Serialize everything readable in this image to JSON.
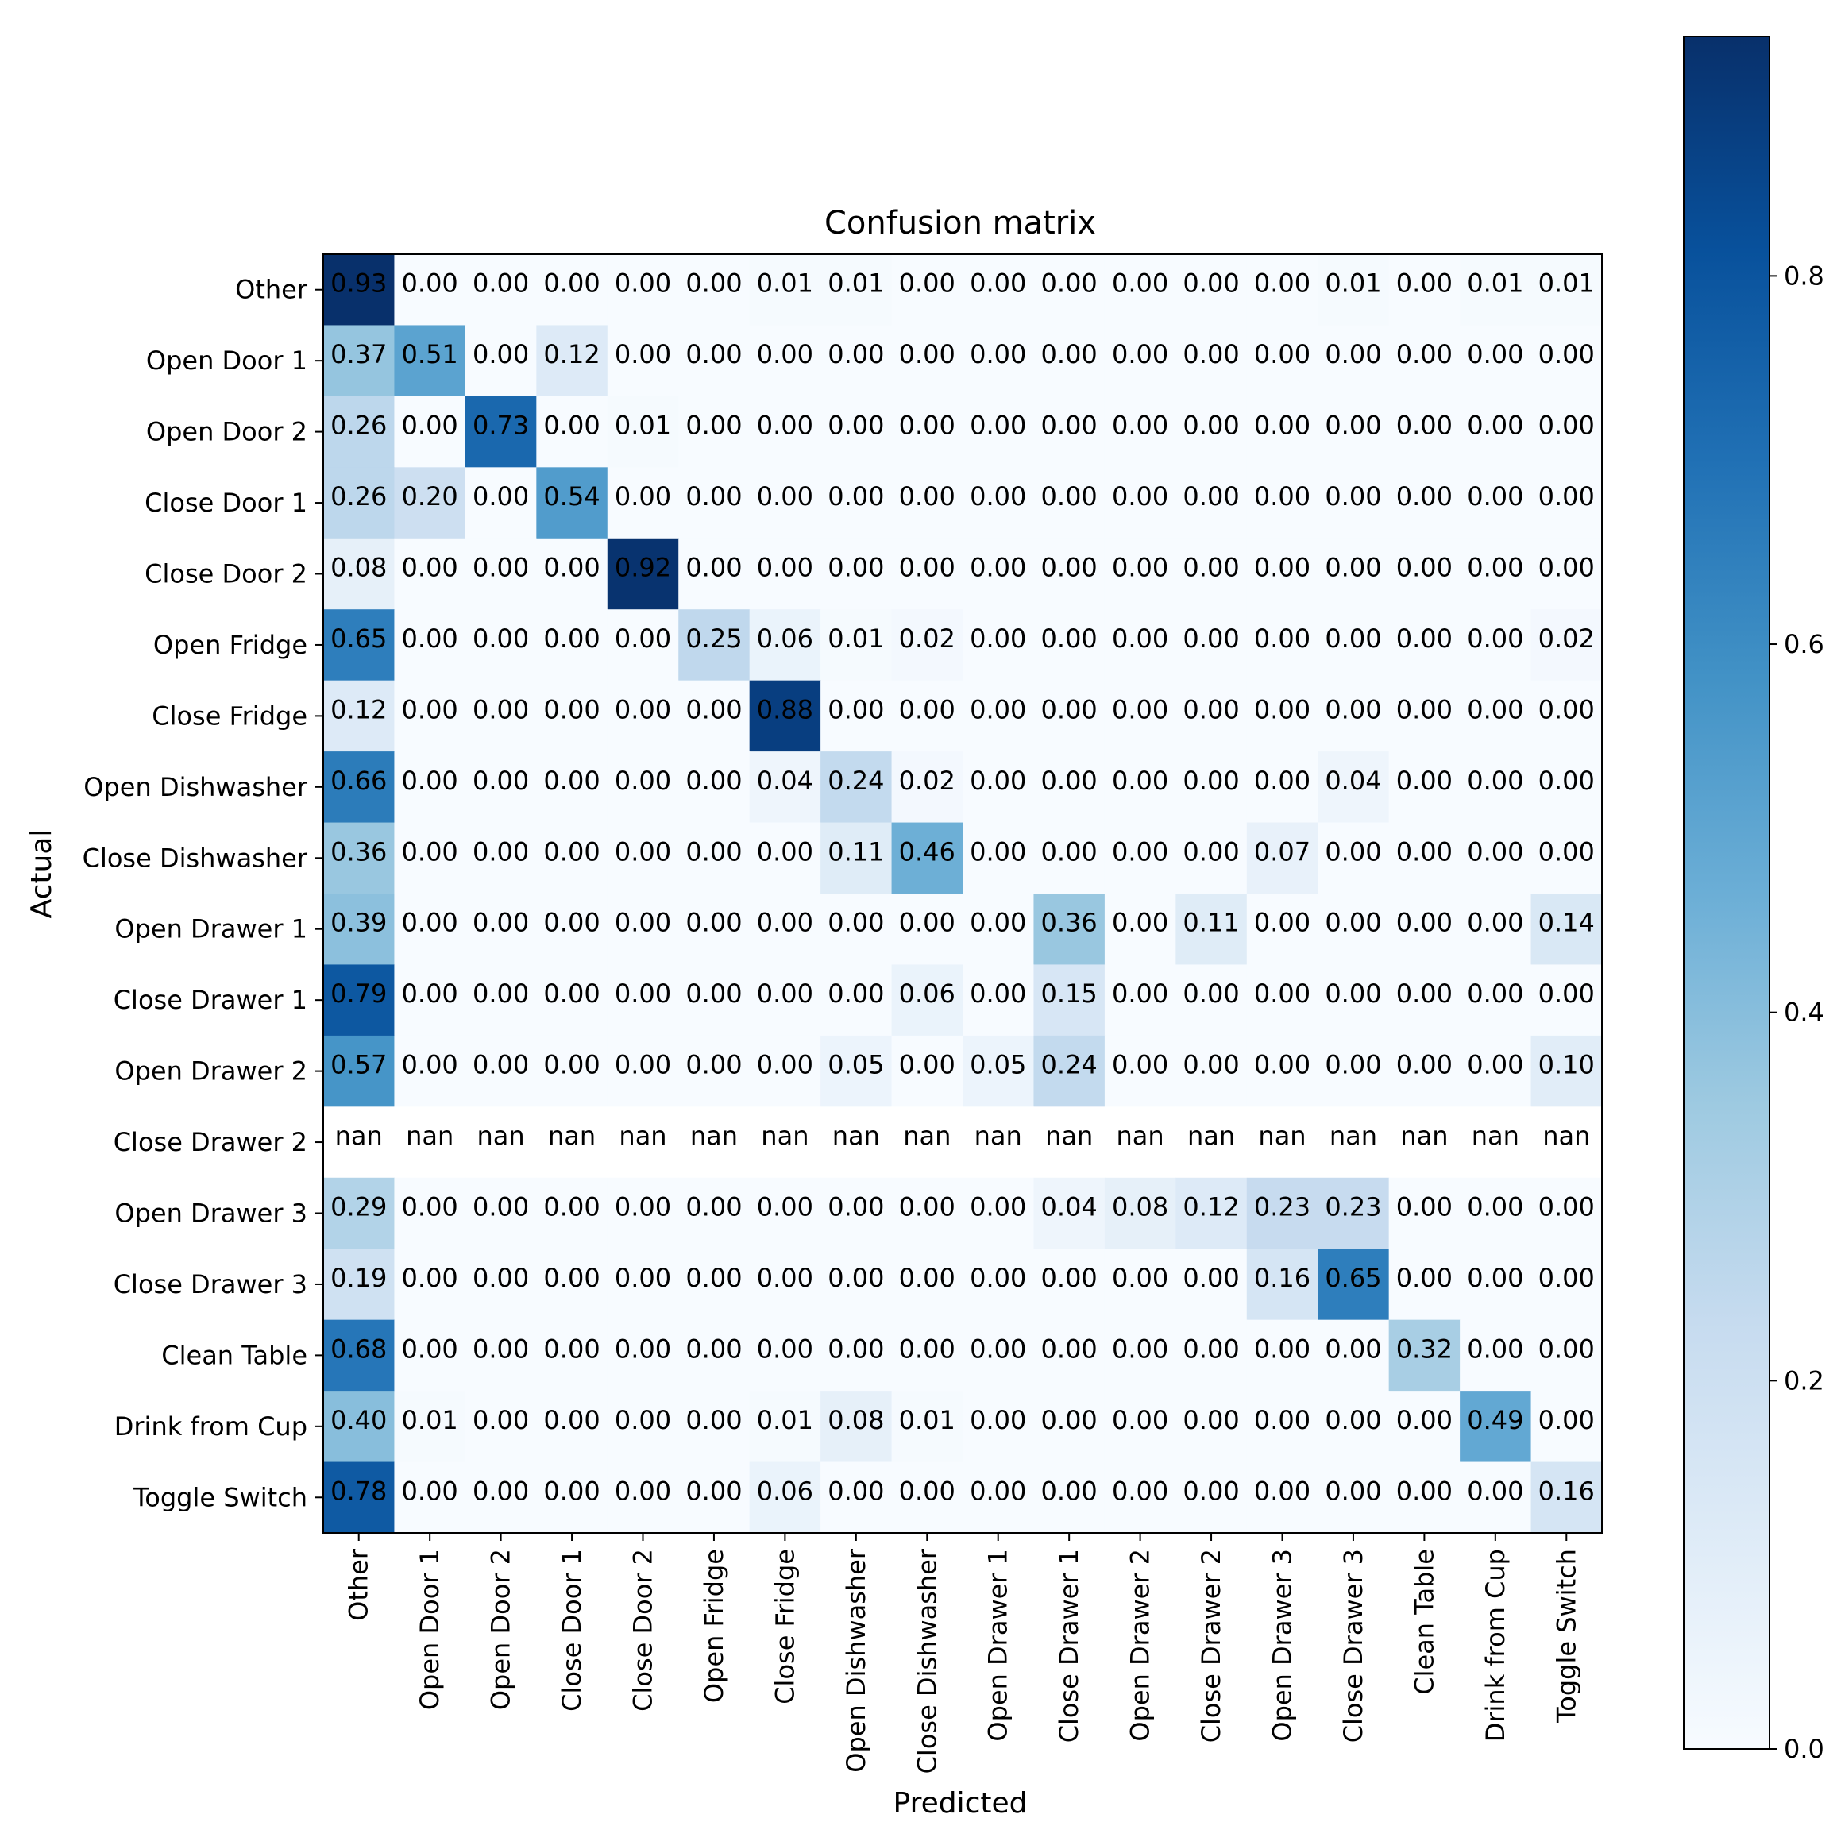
{
  "chart_data": {
    "type": "heatmap",
    "title": "Confusion matrix",
    "xlabel": "Predicted",
    "ylabel": "Actual",
    "labels": [
      "Other",
      "Open Door 1",
      "Open Door 2",
      "Close Door 1",
      "Close Door 2",
      "Open Fridge",
      "Close Fridge",
      "Open Dishwasher",
      "Close Dishwasher",
      "Open Drawer 1",
      "Close Drawer 1",
      "Open Drawer 2",
      "Close Drawer 2",
      "Open Drawer 3",
      "Close Drawer 3",
      "Clean Table",
      "Drink from Cup",
      "Toggle Switch"
    ],
    "matrix": [
      [
        "0.93",
        "0.00",
        "0.00",
        "0.00",
        "0.00",
        "0.00",
        "0.01",
        "0.01",
        "0.00",
        "0.00",
        "0.00",
        "0.00",
        "0.00",
        "0.00",
        "0.01",
        "0.00",
        "0.01",
        "0.01"
      ],
      [
        "0.37",
        "0.51",
        "0.00",
        "0.12",
        "0.00",
        "0.00",
        "0.00",
        "0.00",
        "0.00",
        "0.00",
        "0.00",
        "0.00",
        "0.00",
        "0.00",
        "0.00",
        "0.00",
        "0.00",
        "0.00"
      ],
      [
        "0.26",
        "0.00",
        "0.73",
        "0.00",
        "0.01",
        "0.00",
        "0.00",
        "0.00",
        "0.00",
        "0.00",
        "0.00",
        "0.00",
        "0.00",
        "0.00",
        "0.00",
        "0.00",
        "0.00",
        "0.00"
      ],
      [
        "0.26",
        "0.20",
        "0.00",
        "0.54",
        "0.00",
        "0.00",
        "0.00",
        "0.00",
        "0.00",
        "0.00",
        "0.00",
        "0.00",
        "0.00",
        "0.00",
        "0.00",
        "0.00",
        "0.00",
        "0.00"
      ],
      [
        "0.08",
        "0.00",
        "0.00",
        "0.00",
        "0.92",
        "0.00",
        "0.00",
        "0.00",
        "0.00",
        "0.00",
        "0.00",
        "0.00",
        "0.00",
        "0.00",
        "0.00",
        "0.00",
        "0.00",
        "0.00"
      ],
      [
        "0.65",
        "0.00",
        "0.00",
        "0.00",
        "0.00",
        "0.25",
        "0.06",
        "0.01",
        "0.02",
        "0.00",
        "0.00",
        "0.00",
        "0.00",
        "0.00",
        "0.00",
        "0.00",
        "0.00",
        "0.02"
      ],
      [
        "0.12",
        "0.00",
        "0.00",
        "0.00",
        "0.00",
        "0.00",
        "0.88",
        "0.00",
        "0.00",
        "0.00",
        "0.00",
        "0.00",
        "0.00",
        "0.00",
        "0.00",
        "0.00",
        "0.00",
        "0.00"
      ],
      [
        "0.66",
        "0.00",
        "0.00",
        "0.00",
        "0.00",
        "0.00",
        "0.04",
        "0.24",
        "0.02",
        "0.00",
        "0.00",
        "0.00",
        "0.00",
        "0.00",
        "0.04",
        "0.00",
        "0.00",
        "0.00"
      ],
      [
        "0.36",
        "0.00",
        "0.00",
        "0.00",
        "0.00",
        "0.00",
        "0.00",
        "0.11",
        "0.46",
        "0.00",
        "0.00",
        "0.00",
        "0.00",
        "0.07",
        "0.00",
        "0.00",
        "0.00",
        "0.00"
      ],
      [
        "0.39",
        "0.00",
        "0.00",
        "0.00",
        "0.00",
        "0.00",
        "0.00",
        "0.00",
        "0.00",
        "0.00",
        "0.36",
        "0.00",
        "0.11",
        "0.00",
        "0.00",
        "0.00",
        "0.00",
        "0.14"
      ],
      [
        "0.79",
        "0.00",
        "0.00",
        "0.00",
        "0.00",
        "0.00",
        "0.00",
        "0.00",
        "0.06",
        "0.00",
        "0.15",
        "0.00",
        "0.00",
        "0.00",
        "0.00",
        "0.00",
        "0.00",
        "0.00"
      ],
      [
        "0.57",
        "0.00",
        "0.00",
        "0.00",
        "0.00",
        "0.00",
        "0.00",
        "0.05",
        "0.00",
        "0.05",
        "0.24",
        "0.00",
        "0.00",
        "0.00",
        "0.00",
        "0.00",
        "0.00",
        "0.10"
      ],
      [
        "nan",
        "nan",
        "nan",
        "nan",
        "nan",
        "nan",
        "nan",
        "nan",
        "nan",
        "nan",
        "nan",
        "nan",
        "nan",
        "nan",
        "nan",
        "nan",
        "nan",
        "nan"
      ],
      [
        "0.29",
        "0.00",
        "0.00",
        "0.00",
        "0.00",
        "0.00",
        "0.00",
        "0.00",
        "0.00",
        "0.00",
        "0.04",
        "0.08",
        "0.12",
        "0.23",
        "0.23",
        "0.00",
        "0.00",
        "0.00"
      ],
      [
        "0.19",
        "0.00",
        "0.00",
        "0.00",
        "0.00",
        "0.00",
        "0.00",
        "0.00",
        "0.00",
        "0.00",
        "0.00",
        "0.00",
        "0.00",
        "0.16",
        "0.65",
        "0.00",
        "0.00",
        "0.00"
      ],
      [
        "0.68",
        "0.00",
        "0.00",
        "0.00",
        "0.00",
        "0.00",
        "0.00",
        "0.00",
        "0.00",
        "0.00",
        "0.00",
        "0.00",
        "0.00",
        "0.00",
        "0.00",
        "0.32",
        "0.00",
        "0.00"
      ],
      [
        "0.40",
        "0.01",
        "0.00",
        "0.00",
        "0.00",
        "0.00",
        "0.01",
        "0.08",
        "0.01",
        "0.00",
        "0.00",
        "0.00",
        "0.00",
        "0.00",
        "0.00",
        "0.00",
        "0.49",
        "0.00"
      ],
      [
        "0.78",
        "0.00",
        "0.00",
        "0.00",
        "0.00",
        "0.00",
        "0.06",
        "0.00",
        "0.00",
        "0.00",
        "0.00",
        "0.00",
        "0.00",
        "0.00",
        "0.00",
        "0.00",
        "0.00",
        "0.16"
      ]
    ],
    "colorbar": {
      "range": [
        0,
        0.93
      ],
      "ticks": [
        0.0,
        0.2,
        0.4,
        0.6,
        0.8
      ],
      "tick_labels": [
        "0.0",
        "0.2",
        "0.4",
        "0.6",
        "0.8"
      ],
      "colormap": "Blues"
    }
  }
}
